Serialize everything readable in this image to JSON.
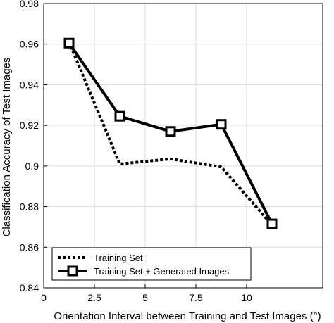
{
  "chart_data": {
    "type": "line",
    "title": "",
    "xlabel": "Orientation Interval between Training and Test Images (°)",
    "ylabel": "Classification Accuracy of Test Images",
    "xlim": [
      0,
      13.75
    ],
    "ylim": [
      0.84,
      0.98
    ],
    "x_ticks": [
      0,
      2.5,
      5,
      7.5,
      10
    ],
    "x_tick_labels": [
      "0",
      "2.5",
      "5",
      "7.5",
      "10"
    ],
    "y_ticks": [
      0.84,
      0.86,
      0.88,
      0.9,
      0.92,
      0.94,
      0.96,
      0.98
    ],
    "y_tick_labels": [
      "0.84",
      "0.86",
      "0.88",
      "0.9",
      "0.92",
      "0.94",
      "0.96",
      "0.98"
    ],
    "grid": true,
    "legend_position": "bottom-left",
    "series": [
      {
        "name": "Training Set",
        "style": "dotted",
        "marker": "none",
        "color": "#000000",
        "x": [
          1.25,
          3.75,
          6.25,
          8.75,
          11.25
        ],
        "y": [
          0.961,
          0.901,
          0.9035,
          0.8995,
          0.871
        ]
      },
      {
        "name": "Training Set + Generated Images",
        "style": "solid",
        "marker": "square",
        "color": "#000000",
        "x": [
          1.25,
          3.75,
          6.25,
          8.75,
          11.25
        ],
        "y": [
          0.9605,
          0.9245,
          0.917,
          0.9205,
          0.8715
        ]
      }
    ]
  }
}
